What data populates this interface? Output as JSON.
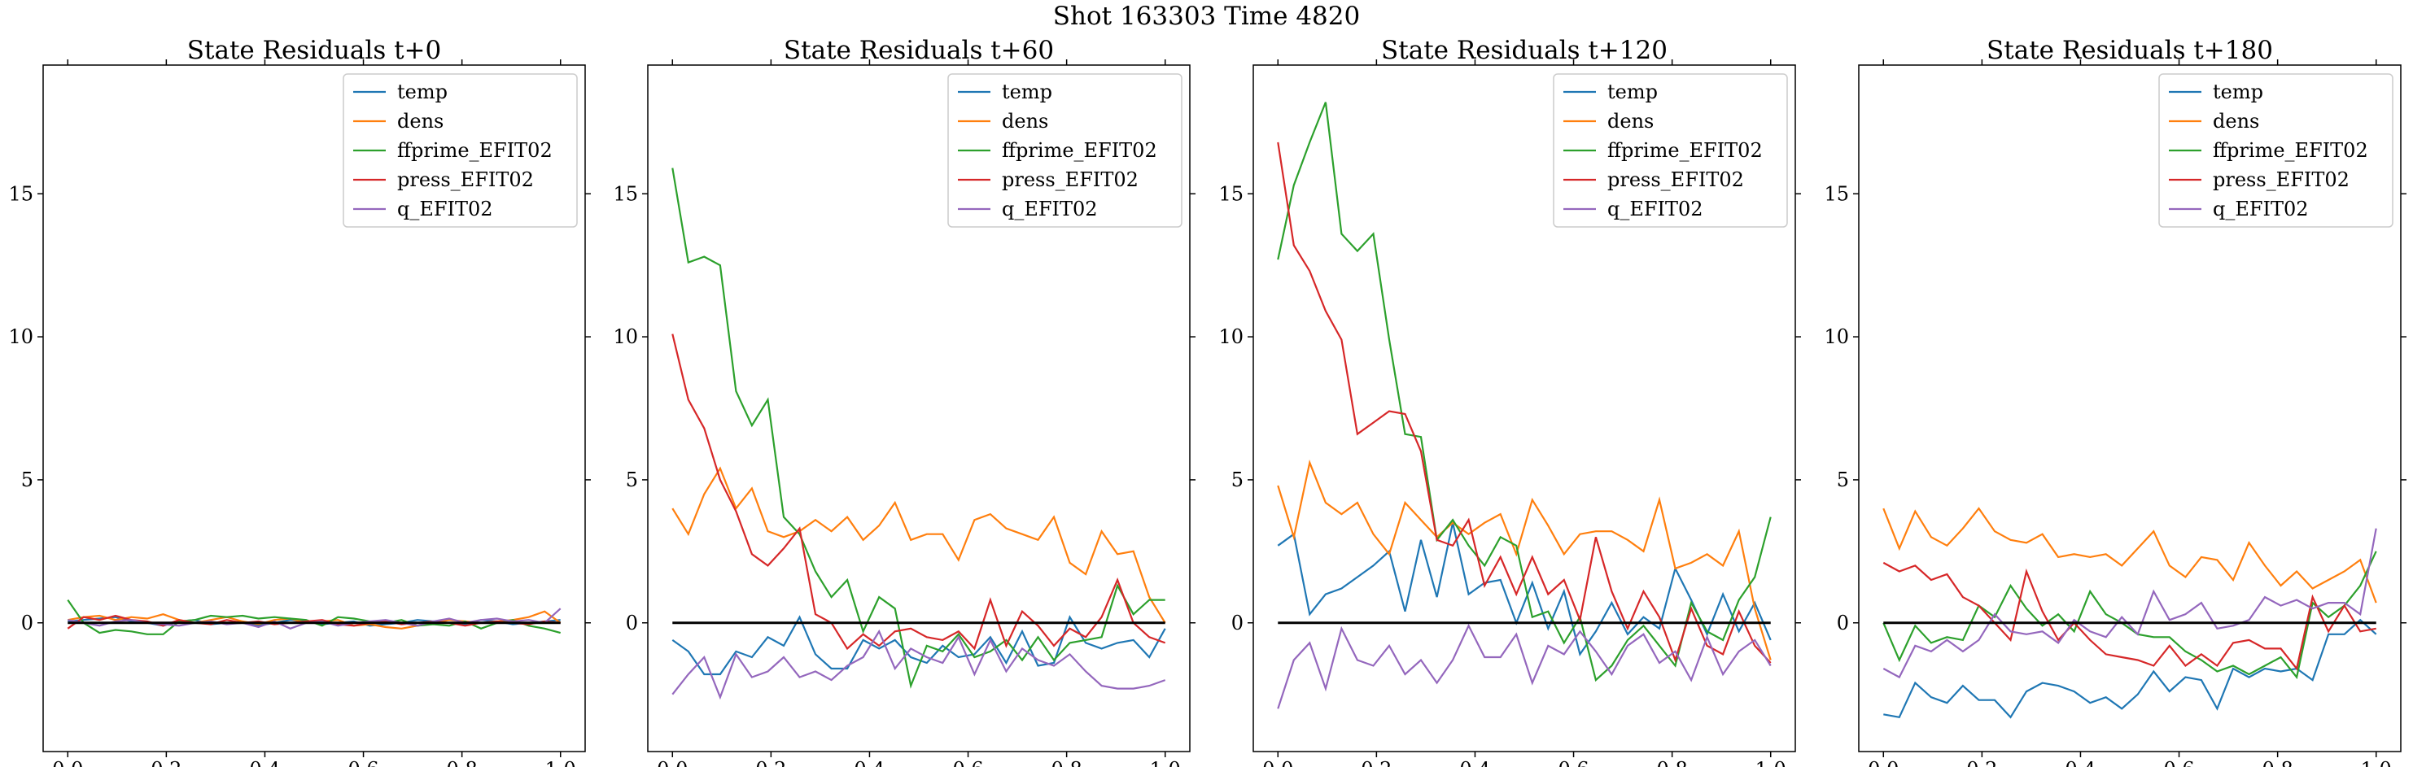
{
  "figure": {
    "title": "Shot 163303   Time 4820"
  },
  "colors": {
    "temp": "#1f77b4",
    "dens": "#ff7f0e",
    "ffprime_EFIT02": "#2ca02c",
    "press_EFIT02": "#d62728",
    "q_EFIT02": "#9467bd",
    "zero_line": "#000000"
  },
  "chart_data": [
    {
      "type": "line",
      "title": "State Residuals t+0",
      "xlim": [
        -0.05,
        1.05
      ],
      "ylim": [
        -4.5,
        19.5
      ],
      "xticks": [
        "0.0",
        "0.2",
        "0.4",
        "0.6",
        "0.8",
        "1.0"
      ],
      "yticks": [
        "0",
        "5",
        "10",
        "15"
      ],
      "legend": "top-right",
      "hline": 0,
      "series": [
        {
          "name": "temp",
          "values": [
            0.05,
            0.1,
            0.15,
            0.2,
            0.05,
            0.0,
            -0.1,
            0.05,
            0.1,
            -0.05,
            0.0,
            0.05,
            -0.1,
            0.0,
            0.1,
            0.05,
            -0.05,
            0.0,
            0.05,
            -0.1,
            -0.05,
            0.0,
            0.1,
            0.05,
            0.0,
            -0.05,
            0.1,
            0.05,
            -0.05,
            0.0,
            0.05,
            0.1
          ]
        },
        {
          "name": "dens",
          "values": [
            0.1,
            0.2,
            0.25,
            0.1,
            0.2,
            0.15,
            0.3,
            0.1,
            0.0,
            0.1,
            0.2,
            0.05,
            -0.05,
            0.1,
            0.15,
            0.0,
            0.05,
            0.1,
            -0.1,
            -0.05,
            -0.15,
            -0.2,
            -0.1,
            0.0,
            0.1,
            0.05,
            0.0,
            0.05,
            0.1,
            0.2,
            0.4,
            0.0
          ]
        },
        {
          "name": "ffprime_EFIT02",
          "values": [
            0.8,
            0.0,
            -0.35,
            -0.25,
            -0.3,
            -0.4,
            -0.4,
            0.05,
            0.1,
            0.25,
            0.2,
            0.25,
            0.15,
            0.2,
            0.15,
            0.1,
            -0.1,
            0.2,
            0.15,
            0.05,
            0.0,
            0.1,
            -0.1,
            -0.05,
            -0.1,
            0.05,
            -0.2,
            0.0,
            0.1,
            -0.1,
            -0.2,
            -0.35
          ]
        },
        {
          "name": "press_EFIT02",
          "values": [
            -0.2,
            0.2,
            0.1,
            0.25,
            0.1,
            0.05,
            -0.1,
            0.1,
            0.0,
            -0.05,
            0.1,
            0.0,
            0.05,
            -0.05,
            0.0,
            0.05,
            0.1,
            -0.05,
            -0.1,
            0.0,
            0.05,
            -0.05,
            0.0,
            0.05,
            0.0,
            -0.1,
            0.0,
            0.05,
            0.0,
            -0.05,
            0.05,
            0.0
          ]
        },
        {
          "name": "q_EFIT02",
          "values": [
            0.1,
            0.0,
            -0.1,
            0.05,
            0.1,
            0.0,
            -0.05,
            -0.1,
            0.0,
            0.05,
            -0.05,
            0.0,
            -0.15,
            0.05,
            -0.2,
            0.0,
            0.05,
            -0.1,
            0.0,
            0.05,
            0.1,
            0.0,
            -0.1,
            0.05,
            0.15,
            0.0,
            0.1,
            0.15,
            0.05,
            0.1,
            0.0,
            0.5
          ]
        }
      ]
    },
    {
      "type": "line",
      "title": "State Residuals t+60",
      "xlim": [
        -0.05,
        1.05
      ],
      "ylim": [
        -4.5,
        19.5
      ],
      "xticks": [
        "0.0",
        "0.2",
        "0.4",
        "0.6",
        "0.8",
        "1.0"
      ],
      "yticks": [
        "0",
        "5",
        "10",
        "15"
      ],
      "legend": "top-right",
      "hline": 0,
      "series": [
        {
          "name": "temp",
          "values": [
            -0.6,
            -1.0,
            -1.8,
            -1.8,
            -1.0,
            -1.2,
            -0.5,
            -0.8,
            0.2,
            -1.1,
            -1.6,
            -1.6,
            -0.6,
            -0.9,
            -0.6,
            -1.2,
            -1.4,
            -0.8,
            -1.2,
            -1.1,
            -0.5,
            -1.4,
            -0.3,
            -1.5,
            -1.4,
            0.2,
            -0.7,
            -0.9,
            -0.7,
            -0.6,
            -1.2,
            -0.2
          ]
        },
        {
          "name": "dens",
          "values": [
            4.0,
            3.1,
            4.5,
            5.4,
            4.0,
            4.7,
            3.2,
            3.0,
            3.2,
            3.6,
            3.2,
            3.7,
            2.9,
            3.4,
            4.2,
            2.9,
            3.1,
            3.1,
            2.2,
            3.6,
            3.8,
            3.3,
            3.1,
            2.9,
            3.7,
            2.1,
            1.7,
            3.2,
            2.4,
            2.5,
            0.9,
            0.0
          ]
        },
        {
          "name": "ffprime_EFIT02",
          "values": [
            15.9,
            12.6,
            12.8,
            12.5,
            8.1,
            6.9,
            7.8,
            3.7,
            3.1,
            1.8,
            0.9,
            1.5,
            -0.3,
            0.9,
            0.5,
            -2.2,
            -0.8,
            -1.0,
            -0.4,
            -1.2,
            -1.0,
            -0.6,
            -1.3,
            -0.5,
            -1.3,
            -0.7,
            -0.6,
            -0.5,
            1.3,
            0.3,
            0.8,
            0.8
          ]
        },
        {
          "name": "press_EFIT02",
          "values": [
            10.1,
            7.8,
            6.8,
            5.0,
            3.9,
            2.4,
            2.0,
            2.6,
            3.3,
            0.3,
            0.0,
            -0.9,
            -0.4,
            -0.8,
            -0.3,
            -0.2,
            -0.5,
            -0.6,
            -0.3,
            -0.9,
            0.8,
            -0.8,
            0.4,
            -0.1,
            -0.8,
            -0.2,
            -0.5,
            0.2,
            1.5,
            0.0,
            -0.5,
            -0.7
          ]
        },
        {
          "name": "q_EFIT02",
          "values": [
            -2.5,
            -1.8,
            -1.2,
            -2.6,
            -1.1,
            -1.9,
            -1.7,
            -1.2,
            -1.9,
            -1.7,
            -2.0,
            -1.5,
            -1.2,
            -0.3,
            -1.6,
            -0.9,
            -1.2,
            -1.4,
            -0.5,
            -1.8,
            -0.6,
            -1.7,
            -0.9,
            -1.3,
            -1.5,
            -1.1,
            -1.7,
            -2.2,
            -2.3,
            -2.3,
            -2.2,
            -2.0
          ]
        }
      ]
    },
    {
      "type": "line",
      "title": "State Residuals t+120",
      "xlim": [
        -0.05,
        1.05
      ],
      "ylim": [
        -4.5,
        19.5
      ],
      "xticks": [
        "0.0",
        "0.2",
        "0.4",
        "0.6",
        "0.8",
        "1.0"
      ],
      "yticks": [
        "0",
        "5",
        "10",
        "15"
      ],
      "legend": "top-right",
      "hline": 0,
      "series": [
        {
          "name": "temp",
          "values": [
            2.7,
            3.1,
            0.3,
            1.0,
            1.2,
            1.6,
            2.0,
            2.5,
            0.4,
            2.9,
            0.9,
            3.5,
            1.0,
            1.4,
            1.5,
            0.0,
            1.4,
            -0.2,
            1.1,
            -1.1,
            -0.3,
            0.7,
            -0.4,
            0.2,
            -0.2,
            1.9,
            0.8,
            -0.4,
            1.0,
            -0.3,
            0.7,
            -0.6
          ]
        },
        {
          "name": "dens",
          "values": [
            4.8,
            3.0,
            5.6,
            4.2,
            3.8,
            4.2,
            3.1,
            2.4,
            4.2,
            3.6,
            3.0,
            3.5,
            3.1,
            3.5,
            3.8,
            2.4,
            4.3,
            3.4,
            2.4,
            3.1,
            3.2,
            3.2,
            2.9,
            2.5,
            4.3,
            1.9,
            2.1,
            2.4,
            2.0,
            3.2,
            0.5,
            -1.3
          ]
        },
        {
          "name": "ffprime_EFIT02",
          "values": [
            12.7,
            15.3,
            16.8,
            18.2,
            13.6,
            13.0,
            13.6,
            9.9,
            6.6,
            6.5,
            2.9,
            3.6,
            2.7,
            2.0,
            3.0,
            2.7,
            0.2,
            0.4,
            -0.7,
            0.2,
            -2.0,
            -1.5,
            -0.6,
            -0.1,
            -0.8,
            -1.5,
            0.7,
            -0.3,
            -0.6,
            0.8,
            1.6,
            3.7
          ]
        },
        {
          "name": "press_EFIT02",
          "values": [
            16.8,
            13.2,
            12.3,
            10.9,
            9.9,
            6.6,
            7.0,
            7.4,
            7.3,
            6.0,
            2.9,
            2.7,
            3.6,
            1.3,
            2.3,
            1.0,
            2.3,
            1.0,
            1.5,
            0.1,
            3.0,
            1.1,
            -0.2,
            1.1,
            0.2,
            -1.3,
            0.5,
            -0.8,
            -1.1,
            0.4,
            -0.8,
            -1.4
          ]
        },
        {
          "name": "q_EFIT02",
          "values": [
            -3.0,
            -1.3,
            -0.7,
            -2.3,
            -0.2,
            -1.3,
            -1.5,
            -0.8,
            -1.8,
            -1.3,
            -2.1,
            -1.3,
            -0.1,
            -1.2,
            -1.2,
            -0.4,
            -2.1,
            -0.8,
            -1.1,
            -0.3,
            -1.0,
            -1.8,
            -0.8,
            -0.4,
            -1.4,
            -1.0,
            -2.0,
            -0.5,
            -1.8,
            -1.0,
            -0.6,
            -1.5
          ]
        }
      ]
    },
    {
      "type": "line",
      "title": "State Residuals t+180",
      "xlim": [
        -0.05,
        1.05
      ],
      "ylim": [
        -4.5,
        19.5
      ],
      "xticks": [
        "0.0",
        "0.2",
        "0.4",
        "0.6",
        "0.8",
        "1.0"
      ],
      "yticks": [
        "0",
        "5",
        "10",
        "15"
      ],
      "legend": "top-right",
      "hline": 0,
      "series": [
        {
          "name": "temp",
          "values": [
            -3.2,
            -3.3,
            -2.1,
            -2.6,
            -2.8,
            -2.2,
            -2.7,
            -2.7,
            -3.3,
            -2.4,
            -2.1,
            -2.2,
            -2.4,
            -2.8,
            -2.6,
            -3.0,
            -2.5,
            -1.7,
            -2.4,
            -1.9,
            -2.0,
            -3.0,
            -1.6,
            -1.9,
            -1.6,
            -1.7,
            -1.6,
            -2.0,
            -0.4,
            -0.4,
            0.1,
            -0.4
          ]
        },
        {
          "name": "dens",
          "values": [
            4.0,
            2.6,
            3.9,
            3.0,
            2.7,
            3.3,
            4.0,
            3.2,
            2.9,
            2.8,
            3.1,
            2.3,
            2.4,
            2.3,
            2.4,
            2.0,
            2.6,
            3.2,
            2.0,
            1.6,
            2.3,
            2.2,
            1.5,
            2.8,
            2.0,
            1.3,
            1.8,
            1.2,
            1.5,
            1.8,
            2.2,
            0.7
          ]
        },
        {
          "name": "ffprime_EFIT02",
          "values": [
            0.0,
            -1.3,
            -0.1,
            -0.7,
            -0.5,
            -0.6,
            0.6,
            0.2,
            1.3,
            0.5,
            -0.1,
            0.3,
            -0.3,
            1.1,
            0.3,
            0.0,
            -0.4,
            -0.5,
            -0.5,
            -1.0,
            -1.3,
            -1.7,
            -1.5,
            -1.8,
            -1.5,
            -1.2,
            -1.9,
            0.7,
            0.2,
            0.6,
            1.3,
            2.5
          ]
        },
        {
          "name": "press_EFIT02",
          "values": [
            2.1,
            1.8,
            2.0,
            1.5,
            1.7,
            0.9,
            0.6,
            0.0,
            -0.6,
            1.8,
            0.4,
            -0.6,
            0.0,
            -0.6,
            -1.1,
            -1.2,
            -1.3,
            -1.5,
            -0.8,
            -1.5,
            -1.1,
            -1.5,
            -0.7,
            -0.6,
            -0.9,
            -0.9,
            -1.6,
            0.9,
            -0.3,
            0.6,
            -0.3,
            -0.2
          ]
        },
        {
          "name": "q_EFIT02",
          "values": [
            -1.6,
            -1.9,
            -0.8,
            -1.0,
            -0.6,
            -1.0,
            -0.6,
            0.3,
            -0.3,
            -0.4,
            -0.3,
            -0.7,
            0.1,
            -0.3,
            -0.5,
            0.2,
            -0.4,
            1.1,
            0.1,
            0.3,
            0.7,
            -0.2,
            -0.1,
            0.1,
            0.9,
            0.6,
            0.8,
            0.5,
            0.7,
            0.7,
            0.3,
            3.3
          ]
        }
      ]
    }
  ]
}
